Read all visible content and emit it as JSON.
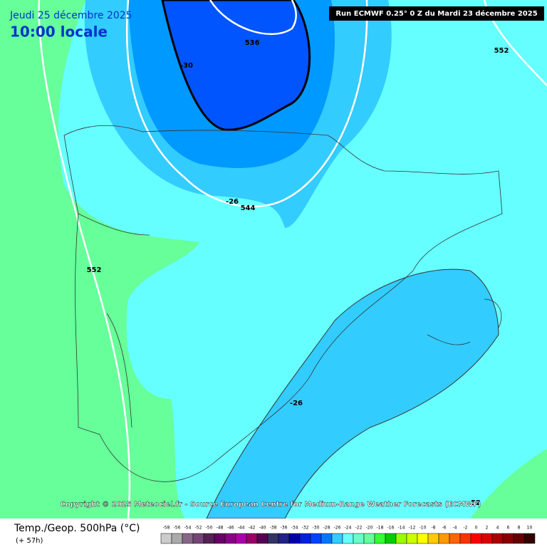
{
  "header": {
    "date": "Jeudi 25 décembre 2025",
    "time": "10:00 locale",
    "run": "Run ECMWF 0.25° 0 Z du Mardi 23 décembre 2025"
  },
  "map": {
    "contour_labels": [
      "-30",
      "536",
      "-26",
      "544",
      "552",
      "552",
      "-26",
      "52"
    ]
  },
  "copyright": "Copyright © 2025 Meteociel.fr - Source European Centre for Medium-Range Weather Forecasts (ECMWF)",
  "footer": {
    "title": "Temp./Geop. 500hPa (°C)",
    "lead": "(+ 57h)"
  },
  "legend": {
    "ticks": [
      -58,
      -56,
      -54,
      -52,
      -50,
      -48,
      -46,
      -44,
      -42,
      -40,
      -38,
      -36,
      -34,
      -32,
      -30,
      -28,
      -26,
      -24,
      -22,
      -20,
      -18,
      -16,
      -14,
      -12,
      -10,
      -8,
      -6,
      -4,
      -2,
      0,
      2,
      4,
      6,
      8,
      10
    ]
  }
}
